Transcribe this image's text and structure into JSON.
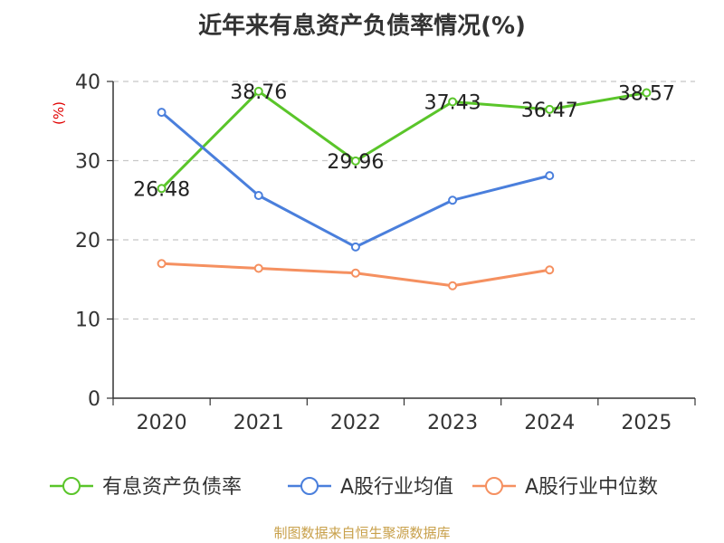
{
  "chart_data": {
    "type": "line",
    "title": "近年来有息资产负债率情况(%)",
    "ylabel": "(%)",
    "xlabel": "",
    "categories": [
      "2020",
      "2021",
      "2022",
      "2023",
      "2024",
      "2025"
    ],
    "ylim": [
      0,
      40
    ],
    "yticks": [
      0,
      10,
      20,
      30,
      40
    ],
    "grid": true,
    "legend_position": "bottom",
    "series": [
      {
        "name": "有息资产负债率",
        "color": "#5ac52a",
        "values": [
          26.48,
          38.76,
          29.96,
          37.43,
          36.47,
          38.57
        ],
        "show_labels": true
      },
      {
        "name": "A股行业均值",
        "color": "#4a7fdc",
        "values": [
          36.1,
          25.6,
          19.1,
          25.0,
          28.1,
          null
        ],
        "show_labels": false
      },
      {
        "name": "A股行业中位数",
        "color": "#f59060",
        "values": [
          17.0,
          16.4,
          15.8,
          14.2,
          16.2,
          null
        ],
        "show_labels": false
      }
    ]
  },
  "source": "制图数据来自恒生聚源数据库"
}
